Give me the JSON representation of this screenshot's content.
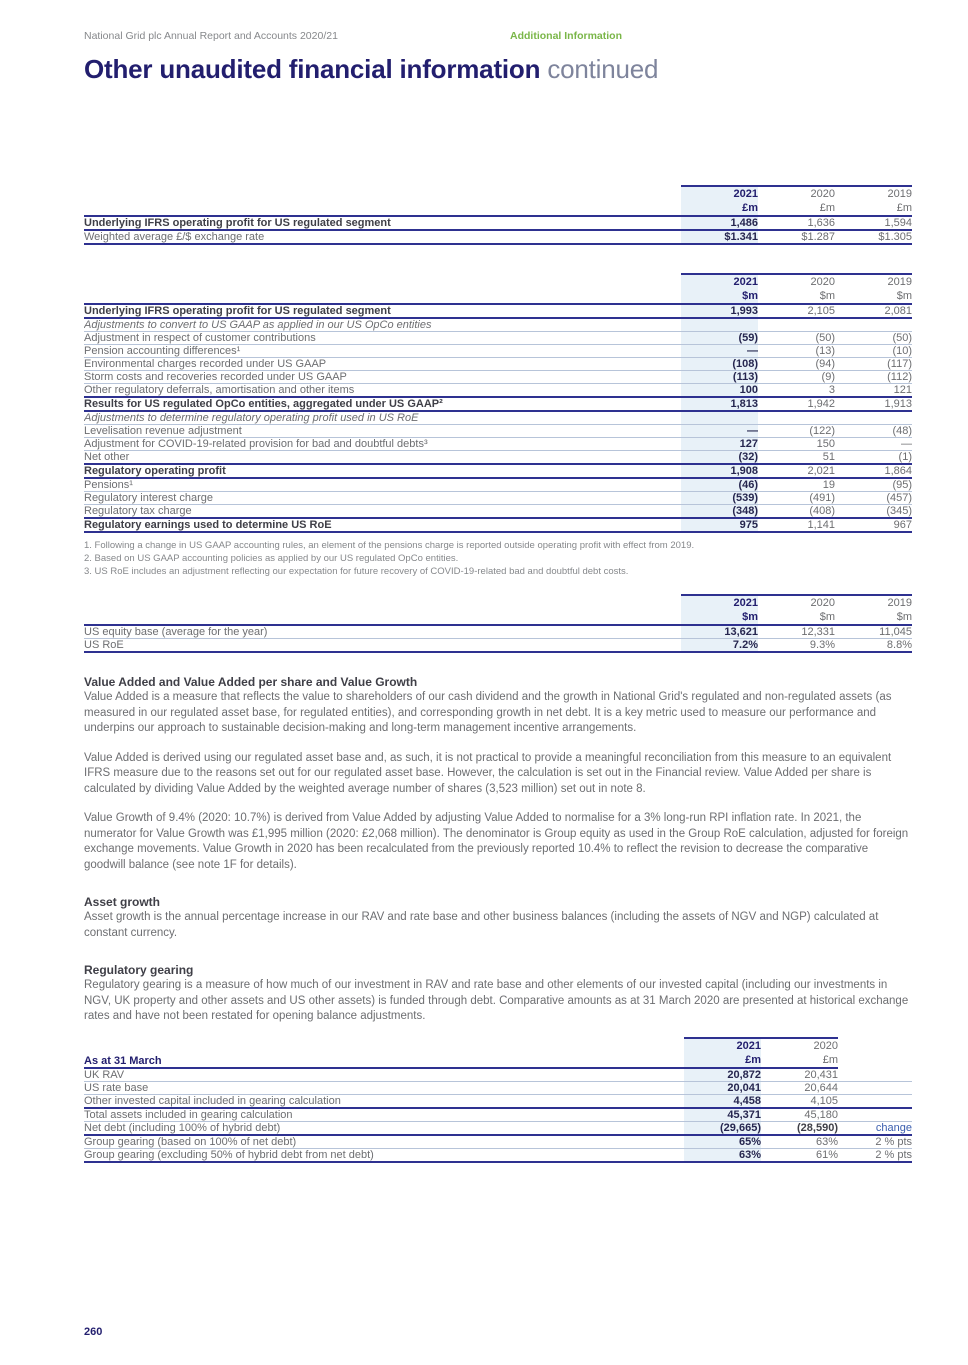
{
  "colors": {
    "brand_navy": "#221e6e",
    "accent_green": "#7ab648",
    "column_highlight": "#e8f1f8",
    "table_rule_navy": "#2e3190",
    "change_link_blue": "#3a5dae"
  },
  "meta": {
    "report_title": "National Grid plc Annual Report and Accounts 2020/21",
    "section_label": "Additional Information"
  },
  "title": {
    "main": "Other unaudited financial information",
    "suffix": "continued"
  },
  "tables": {
    "ifrs_gbp": {
      "columns": [
        {
          "year": "2021",
          "unit": "£m",
          "highlight": true
        },
        {
          "year": "2020",
          "unit": "£m"
        },
        {
          "year": "2019",
          "unit": "£m"
        }
      ],
      "rows": [
        {
          "label": "Underlying IFRS operating profit for US regulated segment",
          "style": "bold",
          "divider": "strong",
          "values": [
            "1,486",
            "1,636",
            "1,594"
          ]
        },
        {
          "label": "Weighted average £/$ exchange rate",
          "style": "normal",
          "divider": "strong",
          "values": [
            "$1.341",
            "$1.287",
            "$1.305"
          ]
        }
      ]
    },
    "us_gaap": {
      "columns": [
        {
          "year": "2021",
          "unit": "$m",
          "highlight": true
        },
        {
          "year": "2020",
          "unit": "$m"
        },
        {
          "year": "2019",
          "unit": "$m"
        }
      ],
      "rows": [
        {
          "label": "Underlying IFRS operating profit for US regulated segment",
          "style": "bold",
          "divider": "strong",
          "values": [
            "1,993",
            "2,105",
            "2,081"
          ]
        },
        {
          "label": "Adjustments to convert to US GAAP as applied in our US OpCo entities",
          "style": "italic",
          "divider": "thin",
          "values": [
            "",
            "",
            ""
          ]
        },
        {
          "label": "Adjustment in respect of customer contributions",
          "style": "normal",
          "divider": "thin",
          "values": [
            "(59)",
            "(50)",
            "(50)"
          ]
        },
        {
          "label": "Pension accounting differences¹",
          "style": "normal",
          "divider": "thin",
          "values": [
            "—",
            "(13)",
            "(10)"
          ]
        },
        {
          "label": "Environmental charges recorded under US GAAP",
          "style": "normal",
          "divider": "thin",
          "values": [
            "(108)",
            "(94)",
            "(117)"
          ]
        },
        {
          "label": "Storm costs and recoveries recorded under US GAAP",
          "style": "normal",
          "divider": "thin",
          "values": [
            "(113)",
            "(9)",
            "(112)"
          ]
        },
        {
          "label": "Other regulatory deferrals, amortisation and other items",
          "style": "normal",
          "divider": "strong",
          "values": [
            "100",
            "3",
            "121"
          ]
        },
        {
          "label": "Results for US regulated OpCo entities, aggregated under US GAAP²",
          "style": "bold",
          "divider": "strong",
          "values": [
            "1,813",
            "1,942",
            "1,913"
          ]
        },
        {
          "label": "Adjustments to determine regulatory operating profit used in US RoE",
          "style": "italic",
          "divider": "thin",
          "values": [
            "",
            "",
            ""
          ]
        },
        {
          "label": "Levelisation revenue adjustment",
          "style": "normal",
          "divider": "thin",
          "values": [
            "—",
            "(122)",
            "(48)"
          ]
        },
        {
          "label": "Adjustment for COVID-19-related provision for bad and doubtful debts³",
          "style": "normal",
          "divider": "thin",
          "values": [
            "127",
            "150",
            "—"
          ]
        },
        {
          "label": "Net other",
          "style": "normal",
          "divider": "strong",
          "values": [
            "(32)",
            "51",
            "(1)"
          ]
        },
        {
          "label": "Regulatory operating profit",
          "style": "bold",
          "divider": "strong",
          "values": [
            "1,908",
            "2,021",
            "1,864"
          ]
        },
        {
          "label": "Pensions¹",
          "style": "normal",
          "divider": "thin",
          "values": [
            "(46)",
            "19",
            "(95)"
          ]
        },
        {
          "label": "Regulatory interest charge",
          "style": "normal",
          "divider": "thin",
          "values": [
            "(539)",
            "(491)",
            "(457)"
          ]
        },
        {
          "label": "Regulatory tax charge",
          "style": "normal",
          "divider": "strong",
          "values": [
            "(348)",
            "(408)",
            "(345)"
          ]
        },
        {
          "label": "Regulatory earnings used to determine US RoE",
          "style": "bold",
          "divider": "strong",
          "values": [
            "975",
            "1,141",
            "967"
          ]
        }
      ]
    },
    "us_roe": {
      "columns": [
        {
          "year": "2021",
          "unit": "$m",
          "highlight": true
        },
        {
          "year": "2020",
          "unit": "$m"
        },
        {
          "year": "2019",
          "unit": "$m"
        }
      ],
      "rows": [
        {
          "label": "US equity base (average for the year)",
          "style": "normal",
          "divider": "thin",
          "values": [
            "13,621",
            "12,331",
            "11,045"
          ]
        },
        {
          "label": "US RoE",
          "style": "normal",
          "divider": "strong",
          "values": [
            "7.2%",
            "9.3%",
            "8.8%"
          ]
        }
      ]
    },
    "gearing": {
      "header_label": "As at 31 March",
      "change_column": true,
      "columns": [
        {
          "year": "2021",
          "unit": "£m",
          "highlight": true
        },
        {
          "year": "2020",
          "unit": "£m"
        }
      ],
      "rows": [
        {
          "label": "UK RAV",
          "style": "normal",
          "divider": "thin",
          "values": [
            "20,872",
            "20,431"
          ],
          "change": ""
        },
        {
          "label": "US rate base",
          "style": "normal",
          "divider": "thin",
          "values": [
            "20,041",
            "20,644"
          ],
          "change": ""
        },
        {
          "label": "Other invested capital included in gearing calculation",
          "style": "normal",
          "divider": "strong",
          "values": [
            "4,458",
            "4,105"
          ],
          "change": ""
        },
        {
          "label": "Total assets included in gearing calculation",
          "style": "normal",
          "divider": "thin",
          "values": [
            "45,371",
            "45,180"
          ],
          "change": ""
        },
        {
          "label": "Net debt (including 100% of hybrid debt)",
          "style": "normal",
          "divider": "strong",
          "values": [
            "(29,665)",
            "(28,590)"
          ],
          "values_bold": true,
          "change": "change",
          "change_is_header": true
        },
        {
          "label": "Group gearing (based on 100% of net debt)",
          "style": "normal",
          "divider": "thin",
          "values": [
            "65%",
            "63%"
          ],
          "change": "2 % pts"
        },
        {
          "label": "Group gearing (excluding 50% of hybrid debt from net debt)",
          "style": "normal",
          "divider": "strong",
          "values": [
            "63%",
            "61%"
          ],
          "change": "2 % pts"
        }
      ]
    }
  },
  "footnotes": [
    "1.  Following a change in US GAAP accounting rules, an element of the pensions charge is reported outside operating profit with effect from 2019.",
    "2.  Based on US GAAP accounting policies as applied by our US regulated OpCo entities.",
    "3.  US RoE includes an adjustment reflecting our expectation for future recovery of COVID-19-related bad and doubtful debt costs."
  ],
  "sections": {
    "value_added": {
      "heading": "Value Added and Value Added per share and Value Growth",
      "paragraphs": [
        "Value Added is a measure that reflects the value to shareholders of our cash dividend and the growth in National Grid's regulated and non-regulated assets (as measured in our regulated asset base, for regulated entities), and corresponding growth in net debt. It is a key metric used to measure our performance and underpins our approach to sustainable decision-making and long-term management incentive arrangements.",
        "Value Added is derived using our regulated asset base and, as such, it is not practical to provide a meaningful reconciliation from this measure to an equivalent IFRS measure due to the reasons set out for our regulated asset base. However, the calculation is set out in the Financial review. Value Added per share is calculated by dividing Value Added by the weighted average number of shares (3,523 million) set out in note 8.",
        "Value Growth of 9.4% (2020: 10.7%) is derived from Value Added by adjusting Value Added to normalise for a 3% long-run RPI inflation rate. In 2021, the numerator for Value Growth was £1,995 million (2020: £2,068 million). The denominator is Group equity as used in the Group RoE calculation, adjusted for foreign exchange movements. Value Growth in 2020 has been recalculated from the previously reported 10.4% to reflect the revision to decrease the comparative goodwill balance (see note 1F for details)."
      ]
    },
    "asset_growth": {
      "heading": "Asset growth",
      "paragraphs": [
        "Asset growth is the annual percentage increase in our RAV and rate base and other business balances (including the assets of NGV and NGP) calculated at constant currency."
      ]
    },
    "regulatory_gearing": {
      "heading": "Regulatory gearing",
      "paragraphs": [
        "Regulatory gearing is a measure of how much of our investment in RAV and rate base and other elements of our invested capital (including our investments in NGV, UK property and other assets and US other assets) is funded through debt. Comparative amounts as at 31 March 2020 are presented at historical exchange rates and have not been restated for opening balance adjustments."
      ]
    }
  },
  "footer": {
    "page_number": "260"
  }
}
